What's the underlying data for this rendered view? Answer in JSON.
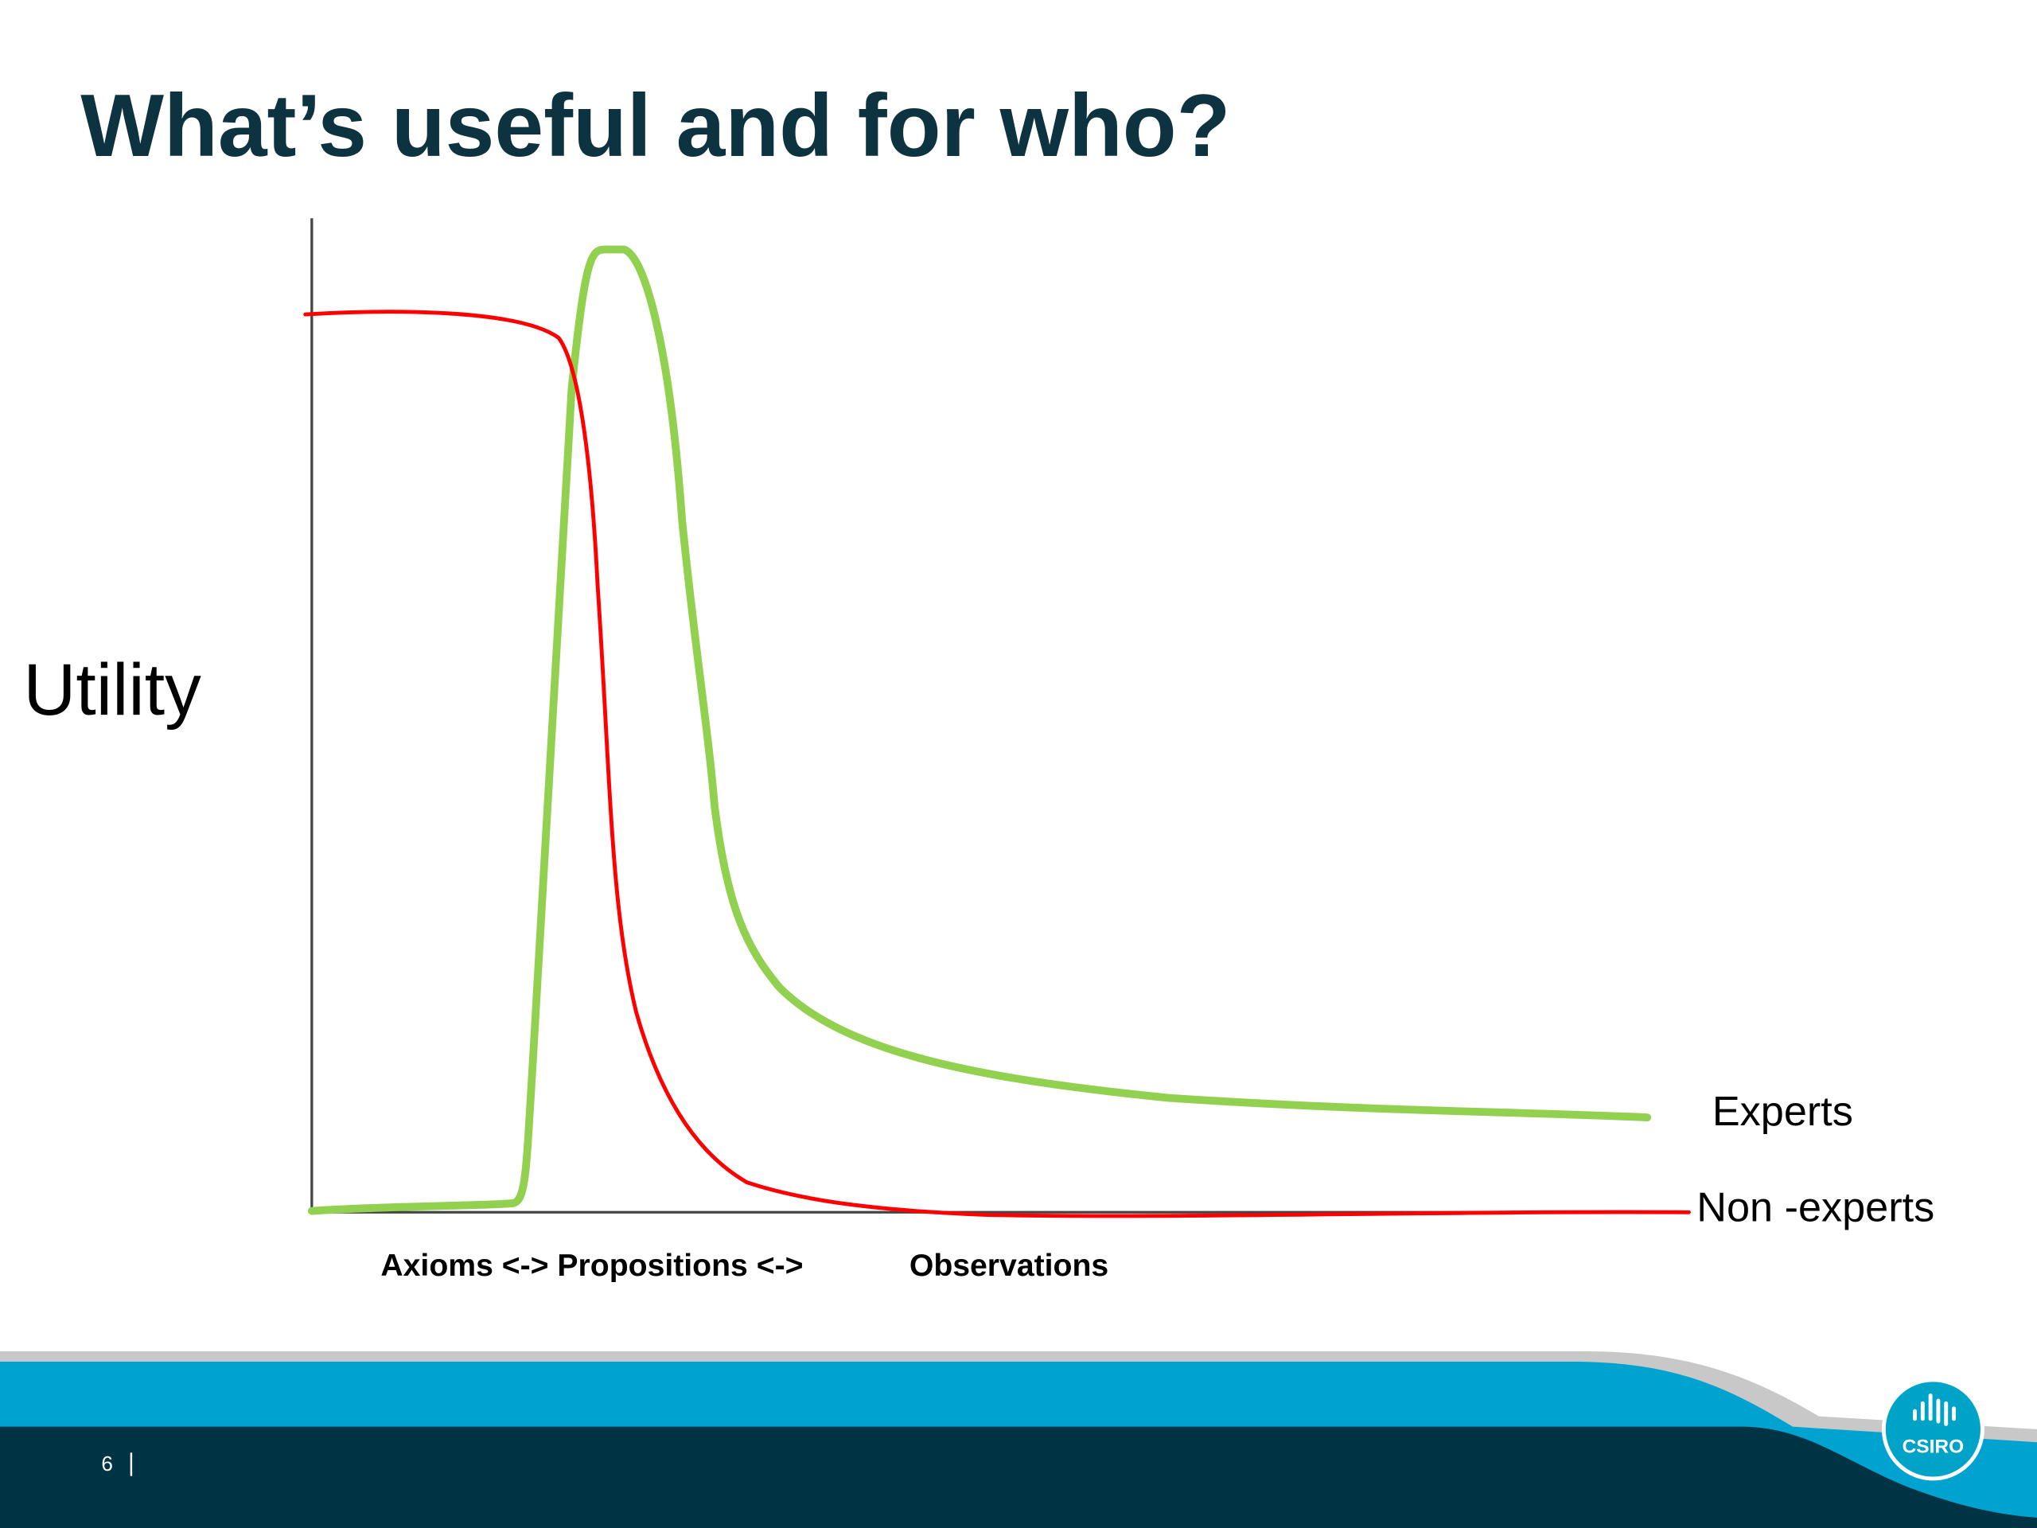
{
  "header": {
    "title": "What’s useful and for who?"
  },
  "chart": {
    "y_label": "Utility",
    "x_labels": [
      "Axioms <-> Propositions <->",
      "Observations"
    ],
    "curve_labels": [
      "Experts",
      "Non -experts"
    ]
  },
  "footer": {
    "page_number": "6",
    "logo": "CSIRO"
  }
}
